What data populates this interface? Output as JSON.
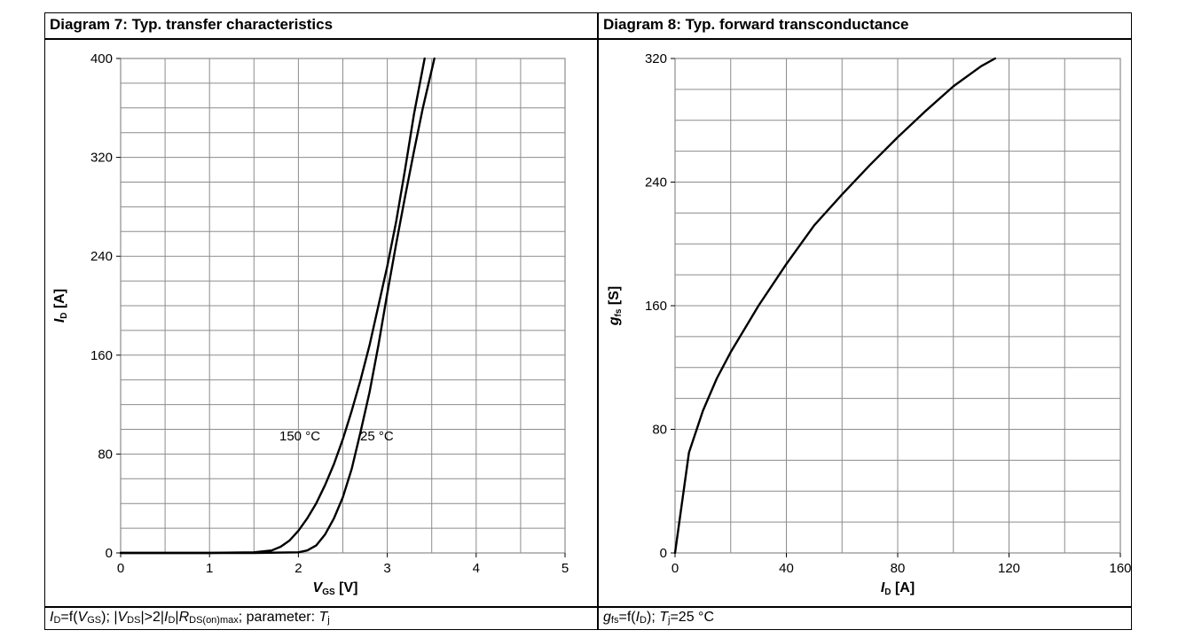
{
  "panels": [
    {
      "title": "Diagram 7: Typ. transfer characteristics"
    },
    {
      "title": "Diagram 8: Typ. forward transconductance"
    }
  ],
  "captions": {
    "left": {
      "id_italic": "I",
      "id_sub": "D",
      "eq_f": "=f(",
      "vgs_italic": "V",
      "vgs_sub": "GS",
      "mid1": "); |",
      "vds_italic": "V",
      "vds_sub": "DS",
      "mid2": "|>2|",
      "id2_italic": "I",
      "id2_sub": "D",
      "mid3": "|",
      "r_italic": "R",
      "r_sub": "DS(on)max",
      "tail": "; parameter: ",
      "tj_italic": "T",
      "tj_sub": "j"
    },
    "right": {
      "g_italic": "g",
      "g_sub": "fs",
      "eq_f": "=f(",
      "id_italic": "I",
      "id_sub": "D",
      "mid": "); ",
      "tj_italic": "T",
      "tj_sub": "j",
      "tail": "=25 °C"
    }
  },
  "chart_data": [
    {
      "type": "line",
      "title": "Diagram 7: Typ. transfer characteristics",
      "xlabel_main": "V",
      "xlabel_sub": "GS",
      "xlabel_unit": " [V]",
      "ylabel_main": "I",
      "ylabel_sub": "D",
      "ylabel_unit": " [A]",
      "xlim": [
        0,
        5
      ],
      "ylim": [
        0,
        400
      ],
      "xticks": [
        "0",
        "1",
        "2",
        "3",
        "4",
        "5"
      ],
      "yticks": [
        "0",
        "80",
        "160",
        "240",
        "320",
        "400"
      ],
      "x_minor": 0.5,
      "y_minor": 20,
      "series": [
        {
          "name": "150 °C",
          "x": [
            0,
            1.0,
            1.5,
            1.7,
            1.8,
            1.9,
            2.0,
            2.1,
            2.2,
            2.3,
            2.4,
            2.5,
            2.6,
            2.7,
            2.8,
            2.9,
            3.0,
            3.1,
            3.2,
            3.3,
            3.42
          ],
          "y": [
            0,
            0,
            0.5,
            2,
            5,
            10,
            18,
            28,
            40,
            55,
            72,
            92,
            115,
            140,
            168,
            200,
            232,
            268,
            310,
            355,
            400
          ]
        },
        {
          "name": "25 °C",
          "x": [
            0,
            1.5,
            2.0,
            2.1,
            2.2,
            2.3,
            2.4,
            2.5,
            2.6,
            2.7,
            2.8,
            2.9,
            3.0,
            3.1,
            3.2,
            3.3,
            3.4,
            3.53
          ],
          "y": [
            0,
            0,
            0.5,
            2,
            6,
            15,
            28,
            45,
            68,
            98,
            130,
            168,
            210,
            250,
            288,
            325,
            360,
            400
          ]
        }
      ],
      "annotations": [
        "150 °C",
        "25 °C"
      ]
    },
    {
      "type": "line",
      "title": "Diagram 8: Typ. forward transconductance",
      "xlabel_main": "I",
      "xlabel_sub": "D",
      "xlabel_unit": " [A]",
      "ylabel_main": "g",
      "ylabel_sub": "fs",
      "ylabel_unit": " [S]",
      "xlim": [
        0,
        160
      ],
      "ylim": [
        0,
        320
      ],
      "xticks": [
        "0",
        "40",
        "80",
        "120",
        "160"
      ],
      "yticks": [
        "0",
        "80",
        "160",
        "240",
        "320"
      ],
      "x_minor": 20,
      "y_minor": 20,
      "series": [
        {
          "name": "gfs",
          "x": [
            0,
            5,
            10,
            15,
            20,
            30,
            40,
            50,
            60,
            70,
            80,
            90,
            100,
            110,
            115
          ],
          "y": [
            0,
            65,
            92,
            113,
            130,
            160,
            187,
            212,
            232,
            251,
            269,
            286,
            302,
            315,
            320
          ]
        }
      ]
    }
  ]
}
